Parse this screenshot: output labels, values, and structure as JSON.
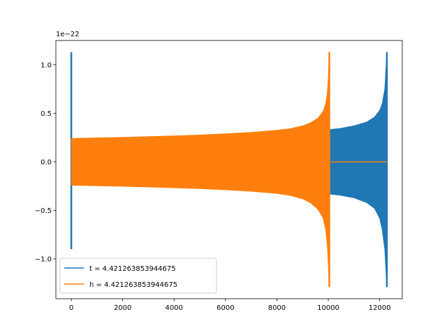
{
  "chart_data": {
    "type": "line",
    "title": "",
    "xlabel": "",
    "ylabel": "",
    "y_offset_label": "1e−22",
    "xlim": [
      -600,
      12880
    ],
    "ylim": [
      -1.41,
      1.25
    ],
    "x_ticks": [
      0,
      2000,
      4000,
      6000,
      8000,
      10000,
      12000
    ],
    "x_tick_labels": [
      "0",
      "2000",
      "4000",
      "6000",
      "8000",
      "10000",
      "12000"
    ],
    "y_ticks": [
      -1.0,
      -0.5,
      0.0,
      0.5,
      1.0
    ],
    "y_tick_labels": [
      "−1.0",
      "−0.5",
      "0.0",
      "0.5",
      "1.0"
    ],
    "grid": false,
    "legend_position": "lower-left",
    "series": [
      {
        "name": "t = 4.421263853944675",
        "color": "#1f77b4",
        "envelope": {
          "x": [
            0,
            1000,
            2000,
            3000,
            4000,
            5000,
            6000,
            7000,
            8000,
            9000,
            10000,
            10500,
            11000,
            11500,
            11800,
            12000,
            12100,
            12200,
            12280
          ],
          "upper": [
            0.24,
            0.243,
            0.247,
            0.251,
            0.256,
            0.262,
            0.27,
            0.28,
            0.292,
            0.31,
            0.33,
            0.345,
            0.37,
            0.41,
            0.46,
            0.53,
            0.6,
            0.75,
            1.13
          ],
          "lower": [
            -0.24,
            -0.243,
            -0.247,
            -0.251,
            -0.256,
            -0.262,
            -0.27,
            -0.28,
            -0.292,
            -0.31,
            -0.33,
            -0.345,
            -0.37,
            -0.42,
            -0.48,
            -0.58,
            -0.7,
            -0.9,
            -1.29
          ]
        },
        "spikes": [
          {
            "x": 0,
            "ymin": -0.9,
            "ymax": 1.13
          },
          {
            "x": 12280,
            "ymin": -1.29,
            "ymax": 1.13
          }
        ]
      },
      {
        "name": "h = 4.421263853944675",
        "color": "#ff7f0e",
        "envelope": {
          "x": [
            0,
            1000,
            2000,
            3000,
            4000,
            5000,
            6000,
            7000,
            8000,
            8500,
            9000,
            9300,
            9600,
            9800,
            9900,
            9960,
            10000,
            10040
          ],
          "upper": [
            0.24,
            0.246,
            0.252,
            0.259,
            0.267,
            0.276,
            0.288,
            0.303,
            0.325,
            0.34,
            0.37,
            0.4,
            0.45,
            0.52,
            0.6,
            0.7,
            0.85,
            1.13
          ],
          "lower": [
            -0.24,
            -0.246,
            -0.252,
            -0.259,
            -0.267,
            -0.276,
            -0.288,
            -0.303,
            -0.325,
            -0.345,
            -0.38,
            -0.42,
            -0.49,
            -0.58,
            -0.7,
            -0.85,
            -1.05,
            -1.29
          ]
        },
        "flat_segment": {
          "x": [
            10040,
            12280
          ],
          "y": 0.0
        },
        "spikes": [
          {
            "x": 10040,
            "ymin": -1.29,
            "ymax": 1.13
          }
        ]
      }
    ]
  }
}
